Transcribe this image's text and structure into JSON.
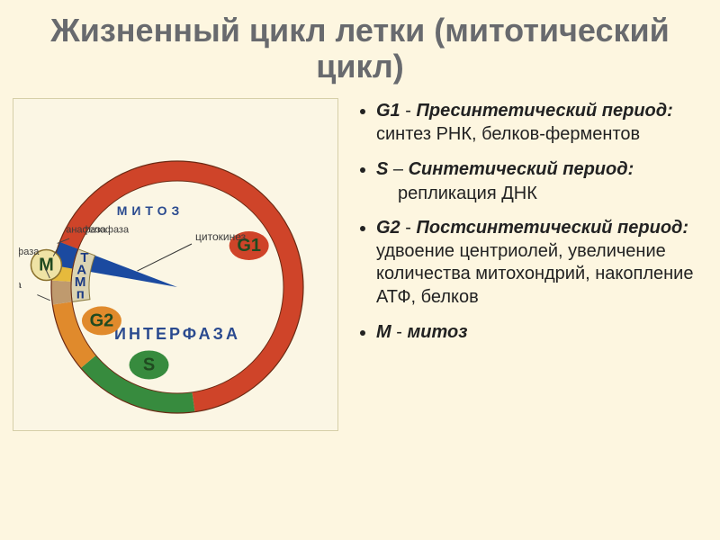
{
  "title": "Жизненный цикл летки (митотический цикл)",
  "diagram": {
    "background_color": "#fbf6e4",
    "outer_ring": {
      "r_outer": 140,
      "r_inner": 118,
      "arcs": [
        {
          "name": "G1",
          "start_deg": -69,
          "end_deg": 172,
          "color": "#cf4429"
        },
        {
          "name": "S",
          "start_deg": 172,
          "end_deg": 230,
          "color": "#378b3e"
        },
        {
          "name": "G2",
          "start_deg": 230,
          "end_deg": 262,
          "color": "#e08a2c"
        },
        {
          "name": "prophase",
          "start_deg": 262,
          "end_deg": 273,
          "color": "#bf9a6e"
        },
        {
          "name": "M",
          "start_deg": 273,
          "end_deg": 284,
          "color": "#e6ba3c"
        },
        {
          "name": "anaphase",
          "start_deg": 284,
          "end_deg": 289,
          "color": "#8a712d"
        },
        {
          "name": "telophase",
          "start_deg": 289,
          "end_deg": 291,
          "color": "#6a5a27"
        }
      ]
    },
    "wedge": {
      "start_deg": 280,
      "end_deg": 291,
      "color": "#1b4aa0"
    },
    "pmat_band": {
      "r_outer": 118,
      "r_inner": 98,
      "start_deg": 262,
      "end_deg": 291,
      "color": "#dcd4b2",
      "letters": [
        "п",
        "М",
        "А",
        "Т"
      ],
      "letter_color": "#1b3a83",
      "font_size": 15
    },
    "text_labels": {
      "interphase": {
        "text": "ИНТЕРФАЗА",
        "color": "#2a4a8f",
        "font_size": 18,
        "letter_spacing": 3
      },
      "mitosis": {
        "text": "МИТОЗ",
        "color": "#2a4a8f",
        "font_size": 14,
        "letter_spacing": 5
      },
      "phase_label_color": "#204a20",
      "phase_label_font_size": 20,
      "m_circle": {
        "fill": "#efe3a5",
        "stroke": "#8a712d",
        "text": "M",
        "text_color": "#204a20"
      },
      "outer_labels_color": "#3b3b3b",
      "outer_labels_font_size": 11,
      "outer": {
        "prophase": "профаза",
        "metaphase": "метафаза",
        "anaphase": "анафаза",
        "telophase": "телофаза",
        "cytokinesis": "цитокинез"
      },
      "g1": "G1",
      "g2": "G2",
      "s": "S"
    }
  },
  "items": [
    {
      "code": "G1",
      "term": "Пресинтетический период:",
      "text": " синтез РНК, белков-ферментов"
    },
    {
      "code": "S",
      "term": "Синтетический период:",
      "text": "",
      "sub": "репликация ДНК",
      "dash": "–"
    },
    {
      "code": "G2",
      "term": "Постсинтетический период:",
      "text": " удвоение центриолей, увеличение количества митохондрий, накопление АТФ, белков"
    },
    {
      "code": "M",
      "term": "митоз",
      "text": "",
      "dash": "-"
    }
  ]
}
